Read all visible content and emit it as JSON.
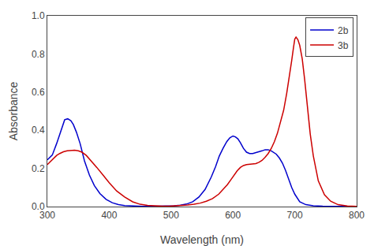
{
  "chart_data": {
    "type": "line",
    "xlabel": "Wavelength (nm)",
    "ylabel": "Absorbance",
    "xlim": [
      300,
      800
    ],
    "ylim": [
      0,
      1
    ],
    "xticks": [
      300,
      400,
      500,
      600,
      700,
      800
    ],
    "yticks": [
      {
        "value": 0,
        "label": "0.0"
      },
      0.2,
      0.4,
      0.6,
      0.8,
      {
        "value": 1.0,
        "label": "1.0"
      }
    ],
    "grid": false,
    "legend": "upper right",
    "series": [
      {
        "name": "2b",
        "color": "#0000cc",
        "x": [
          300,
          308,
          315,
          322,
          328,
          333,
          338,
          342,
          347,
          353,
          360,
          368,
          376,
          385,
          395,
          405,
          415,
          425,
          435,
          445,
          455,
          465,
          475,
          485,
          495,
          505,
          515,
          525,
          535,
          545,
          555,
          565,
          572,
          578,
          584,
          590,
          595,
          600,
          604,
          608,
          612,
          617,
          622,
          627,
          632,
          637,
          642,
          647,
          652,
          657,
          662,
          666,
          670,
          675,
          680,
          685,
          690,
          695,
          700,
          708,
          718,
          730,
          745,
          760,
          780,
          800
        ],
        "values": [
          0.245,
          0.27,
          0.33,
          0.4,
          0.455,
          0.46,
          0.45,
          0.43,
          0.39,
          0.33,
          0.24,
          0.165,
          0.11,
          0.068,
          0.038,
          0.02,
          0.01,
          0.005,
          0.003,
          0.002,
          0.001,
          0.001,
          0.001,
          0.002,
          0.003,
          0.004,
          0.007,
          0.013,
          0.025,
          0.05,
          0.09,
          0.155,
          0.21,
          0.265,
          0.305,
          0.34,
          0.36,
          0.37,
          0.365,
          0.355,
          0.335,
          0.305,
          0.285,
          0.278,
          0.278,
          0.282,
          0.286,
          0.292,
          0.298,
          0.298,
          0.292,
          0.285,
          0.275,
          0.255,
          0.228,
          0.19,
          0.145,
          0.1,
          0.065,
          0.025,
          0.01,
          0.004,
          0.002,
          0.001,
          0.001,
          0.001
        ]
      },
      {
        "name": "3b",
        "color": "#cc0000",
        "x": [
          300,
          308,
          315,
          320,
          326,
          332,
          338,
          344,
          350,
          356,
          363,
          371,
          380,
          390,
          400,
          412,
          425,
          438,
          450,
          462,
          474,
          486,
          497,
          507,
          517,
          527,
          537,
          547,
          557,
          567,
          577,
          585,
          591,
          597,
          602,
          607,
          612,
          617,
          622,
          627,
          632,
          637,
          642,
          647,
          652,
          657,
          662,
          667,
          672,
          677,
          682,
          687,
          692,
          695,
          698,
          700,
          702,
          705,
          708,
          712,
          716,
          720,
          725,
          730,
          738,
          748,
          758,
          770,
          785,
          800
        ],
        "values": [
          0.22,
          0.245,
          0.268,
          0.278,
          0.287,
          0.292,
          0.295,
          0.295,
          0.292,
          0.285,
          0.268,
          0.24,
          0.205,
          0.165,
          0.125,
          0.082,
          0.05,
          0.025,
          0.012,
          0.006,
          0.003,
          0.002,
          0.002,
          0.003,
          0.005,
          0.008,
          0.012,
          0.018,
          0.028,
          0.042,
          0.065,
          0.092,
          0.115,
          0.142,
          0.165,
          0.188,
          0.205,
          0.215,
          0.22,
          0.222,
          0.222,
          0.225,
          0.232,
          0.242,
          0.258,
          0.278,
          0.305,
          0.34,
          0.385,
          0.44,
          0.505,
          0.595,
          0.695,
          0.765,
          0.835,
          0.878,
          0.888,
          0.875,
          0.845,
          0.775,
          0.665,
          0.535,
          0.38,
          0.265,
          0.135,
          0.062,
          0.028,
          0.01,
          0.003,
          0.001
        ]
      }
    ]
  }
}
